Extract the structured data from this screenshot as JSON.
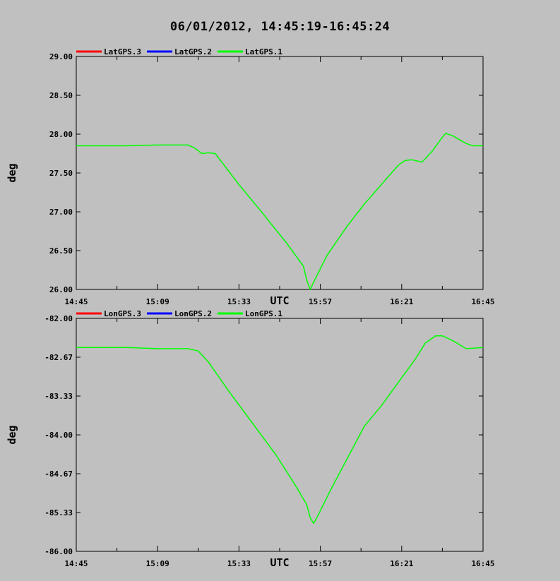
{
  "title": "06/01/2012, 14:45:19-16:45:24",
  "colors": {
    "background": "#c0c0c0",
    "series3": "#ff0000",
    "series2": "#0000ff",
    "series1": "#00ff00"
  },
  "chart_data": [
    {
      "type": "line",
      "ylabel": "deg",
      "xlabel": "UTC",
      "ylim": [
        26.0,
        29.0
      ],
      "yticks": [
        "29.00",
        "28.50",
        "28.00",
        "27.50",
        "27.00",
        "26.50",
        "26.00"
      ],
      "xticks": [
        "14:45",
        "15:09",
        "15:33",
        "15:57",
        "16:21",
        "16:45"
      ],
      "legend": [
        "LatGPS.3",
        "LatGPS.2",
        "LatGPS.1"
      ],
      "series": [
        {
          "name": "LatGPS.1",
          "points": [
            [
              "14:45",
              27.85
            ],
            [
              "14:52",
              27.85
            ],
            [
              "15:00",
              27.85
            ],
            [
              "15:09",
              27.86
            ],
            [
              "15:18",
              27.86
            ],
            [
              "15:20",
              27.82
            ],
            [
              "15:22",
              27.75
            ],
            [
              "15:24",
              27.76
            ],
            [
              "15:26",
              27.75
            ],
            [
              "15:33",
              27.35
            ],
            [
              "15:40",
              26.98
            ],
            [
              "15:47",
              26.6
            ],
            [
              "15:52",
              26.3
            ],
            [
              "15:53",
              26.12
            ],
            [
              "15:54",
              26.0
            ],
            [
              "15:56",
              26.18
            ],
            [
              "15:59",
              26.44
            ],
            [
              "16:05",
              26.82
            ],
            [
              "16:10",
              27.1
            ],
            [
              "16:15",
              27.35
            ],
            [
              "16:20",
              27.6
            ],
            [
              "16:22",
              27.66
            ],
            [
              "16:24",
              27.67
            ],
            [
              "16:27",
              27.64
            ],
            [
              "16:30",
              27.78
            ],
            [
              "16:33",
              27.96
            ],
            [
              "16:34",
              28.01
            ],
            [
              "16:36",
              27.98
            ],
            [
              "16:40",
              27.88
            ],
            [
              "16:42",
              27.85
            ],
            [
              "16:45",
              27.85
            ]
          ]
        }
      ]
    },
    {
      "type": "line",
      "ylabel": "deg",
      "xlabel": "UTC",
      "ylim": [
        -86.0,
        -82.0
      ],
      "yticks": [
        "-82.00",
        "-82.67",
        "-83.33",
        "-84.00",
        "-84.67",
        "-85.33",
        "-86.00"
      ],
      "xticks": [
        "14:45",
        "15:09",
        "15:33",
        "15:57",
        "16:21",
        "16:45"
      ],
      "legend": [
        "LonGPS.3",
        "LonGPS.2",
        "LonGPS.1"
      ],
      "series": [
        {
          "name": "LonGPS.1",
          "points": [
            [
              "14:45",
              -82.5
            ],
            [
              "14:52",
              -82.5
            ],
            [
              "15:00",
              -82.5
            ],
            [
              "15:09",
              -82.52
            ],
            [
              "15:18",
              -82.52
            ],
            [
              "15:21",
              -82.56
            ],
            [
              "15:24",
              -82.75
            ],
            [
              "15:30",
              -83.25
            ],
            [
              "15:37",
              -83.8
            ],
            [
              "15:44",
              -84.35
            ],
            [
              "15:50",
              -84.9
            ],
            [
              "15:53",
              -85.2
            ],
            [
              "15:54",
              -85.42
            ],
            [
              "15:55",
              -85.52
            ],
            [
              "15:56",
              -85.42
            ],
            [
              "16:00",
              -84.95
            ],
            [
              "16:05",
              -84.4
            ],
            [
              "16:10",
              -83.85
            ],
            [
              "16:15",
              -83.5
            ],
            [
              "16:20",
              -83.1
            ],
            [
              "16:25",
              -82.7
            ],
            [
              "16:28",
              -82.42
            ],
            [
              "16:31",
              -82.3
            ],
            [
              "16:33",
              -82.3
            ],
            [
              "16:36",
              -82.38
            ],
            [
              "16:40",
              -82.52
            ],
            [
              "16:45",
              -82.5
            ]
          ]
        }
      ]
    }
  ]
}
